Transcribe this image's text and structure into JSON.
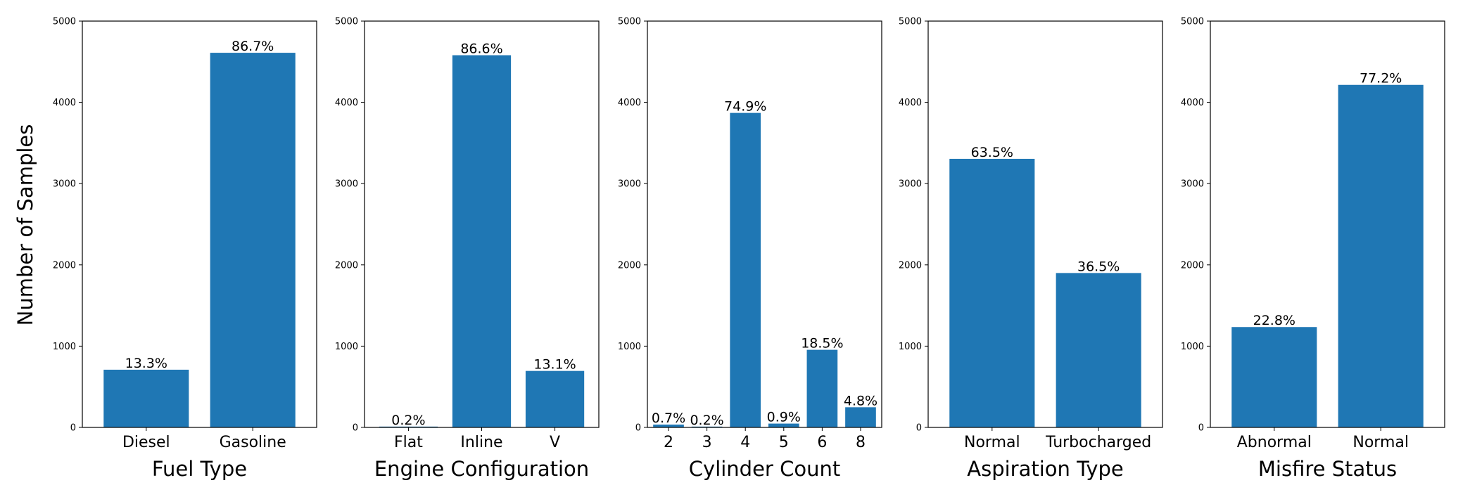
{
  "figure": {
    "ylabel": "Number of Samples",
    "bar_color": "#1f77b4"
  },
  "chart_data": [
    {
      "type": "bar",
      "xlabel": "Fuel Type",
      "ylabel": "Number of Samples",
      "ylim": [
        0,
        5000
      ],
      "yticks": [
        0,
        1000,
        2000,
        3000,
        4000,
        5000
      ],
      "categories": [
        "Diesel",
        "Gasoline"
      ],
      "values": [
        710,
        4610
      ],
      "labels": [
        "13.3%",
        "86.7%"
      ]
    },
    {
      "type": "bar",
      "xlabel": "Engine Configuration",
      "ylim": [
        0,
        5000
      ],
      "yticks": [
        0,
        1000,
        2000,
        3000,
        4000,
        5000
      ],
      "categories": [
        "Flat",
        "Inline",
        "V"
      ],
      "values": [
        10,
        4580,
        695
      ],
      "labels": [
        "0.2%",
        "86.6%",
        "13.1%"
      ]
    },
    {
      "type": "bar",
      "xlabel": "Cylinder Count",
      "ylim": [
        0,
        5000
      ],
      "yticks": [
        0,
        1000,
        2000,
        3000,
        4000,
        5000
      ],
      "categories": [
        "2",
        "3",
        "4",
        "5",
        "6",
        "8"
      ],
      "values": [
        35,
        10,
        3870,
        47,
        955,
        248
      ],
      "labels": [
        "0.7%",
        "0.2%",
        "74.9%",
        "0.9%",
        "18.5%",
        "4.8%"
      ],
      "bar_positions": [
        2,
        3,
        4,
        5,
        6,
        7
      ],
      "xlim": [
        1.45,
        7.55
      ]
    },
    {
      "type": "bar",
      "xlabel": "Aspiration Type",
      "ylim": [
        0,
        5000
      ],
      "yticks": [
        0,
        1000,
        2000,
        3000,
        4000,
        5000
      ],
      "categories": [
        "Normal",
        "Turbocharged"
      ],
      "values": [
        3305,
        1900
      ],
      "labels": [
        "63.5%",
        "36.5%"
      ]
    },
    {
      "type": "bar",
      "xlabel": "Misfire Status",
      "ylim": [
        0,
        5000
      ],
      "yticks": [
        0,
        1000,
        2000,
        3000,
        4000,
        5000
      ],
      "categories": [
        "Abnormal",
        "Normal"
      ],
      "values": [
        1235,
        4215
      ],
      "labels": [
        "22.8%",
        "77.2%"
      ]
    }
  ]
}
